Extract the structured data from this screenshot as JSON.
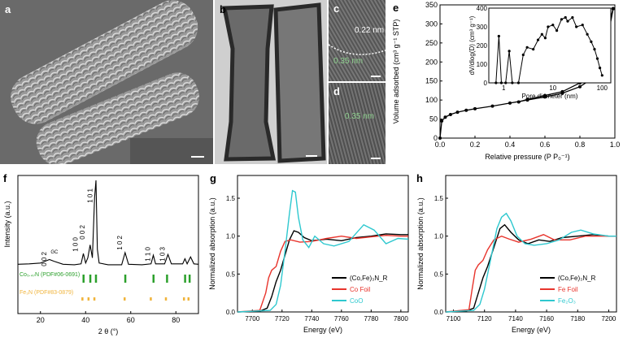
{
  "labels": {
    "a": "a",
    "b": "b",
    "c": "c",
    "d": "d",
    "e": "e",
    "f": "f",
    "g": "g",
    "h": "h"
  },
  "panel_c": {
    "spacing1": "0.22 nm",
    "spacing2": "0.35 nm"
  },
  "panel_d": {
    "spacing": "0.35 nm"
  },
  "colors": {
    "black": "#000000",
    "red": "#e8342c",
    "cyan": "#2ec8cf",
    "green": "#2ca02c",
    "orange": "#f0b43c"
  },
  "chart_data": [
    {
      "id": "e",
      "type": "line",
      "xlabel": "Relative pressure (P P₀⁻¹)",
      "ylabel": "Volume adsorbed (cm³ g⁻¹ STP)",
      "xlim": [
        0,
        1.0
      ],
      "ylim": [
        0,
        350
      ],
      "xticks": [
        "0.0",
        "0.2",
        "0.4",
        "0.6",
        "0.8",
        "1.0"
      ],
      "yticks": [
        "0",
        "50",
        "100",
        "150",
        "200",
        "250",
        "300",
        "350"
      ],
      "series": [
        {
          "values": [
            [
              0.0,
              0
            ],
            [
              0.01,
              45
            ],
            [
              0.03,
              55
            ],
            [
              0.06,
              62
            ],
            [
              0.1,
              68
            ],
            [
              0.15,
              73
            ],
            [
              0.2,
              77
            ],
            [
              0.3,
              84
            ],
            [
              0.4,
              92
            ],
            [
              0.5,
              100
            ],
            [
              0.6,
              108
            ],
            [
              0.7,
              118
            ],
            [
              0.8,
              135
            ],
            [
              0.85,
              150
            ],
            [
              0.9,
              185
            ],
            [
              0.94,
              230
            ],
            [
              0.97,
              290
            ],
            [
              0.99,
              340
            ]
          ]
        },
        {
          "values": [
            [
              0.99,
              340
            ],
            [
              0.97,
              305
            ],
            [
              0.94,
              255
            ],
            [
              0.9,
              205
            ],
            [
              0.85,
              165
            ],
            [
              0.8,
              145
            ],
            [
              0.7,
              122
            ],
            [
              0.6,
              112
            ],
            [
              0.5,
              102
            ],
            [
              0.45,
              95
            ]
          ]
        }
      ],
      "inset": {
        "xlabel": "Pore diameter (nm)",
        "ylabel": "dV/dlog(D) (cm³ g⁻¹)",
        "xscale": "log",
        "xlim": [
          0.5,
          150
        ],
        "ylim": [
          0,
          400
        ],
        "xticks": [
          "1",
          "10",
          "100"
        ],
        "yticks": [
          "0",
          "100",
          "200",
          "300",
          "400"
        ],
        "values": [
          [
            0.7,
            0
          ],
          [
            0.8,
            250
          ],
          [
            0.9,
            0
          ],
          [
            1.1,
            0
          ],
          [
            1.3,
            170
          ],
          [
            1.5,
            0
          ],
          [
            2,
            0
          ],
          [
            2.5,
            150
          ],
          [
            3,
            190
          ],
          [
            4,
            180
          ],
          [
            5,
            230
          ],
          [
            6,
            260
          ],
          [
            7,
            240
          ],
          [
            8,
            300
          ],
          [
            10,
            310
          ],
          [
            12,
            280
          ],
          [
            15,
            340
          ],
          [
            18,
            350
          ],
          [
            20,
            330
          ],
          [
            25,
            350
          ],
          [
            30,
            300
          ],
          [
            40,
            310
          ],
          [
            50,
            260
          ],
          [
            60,
            220
          ],
          [
            70,
            180
          ],
          [
            80,
            130
          ],
          [
            90,
            80
          ],
          [
            100,
            40
          ]
        ]
      }
    },
    {
      "id": "f",
      "type": "line",
      "xlabel": "2 θ (°)",
      "ylabel": "Intensity (a.u.)",
      "xlim": [
        10,
        90
      ],
      "xticks": [
        "20",
        "40",
        "60",
        "80"
      ],
      "peak_labels": [
        "0 0 2",
        "1 0 0",
        "0 0 2",
        "1 0 1",
        "1 0 2",
        "1 1 0",
        "1 0 3"
      ],
      "peak_label_sub": "GC",
      "refs": [
        {
          "name": "Co₅.₄₇N (PDF#06-0691)",
          "color": "#2ca02c",
          "peaks": [
            39,
            42,
            44.5,
            57.5,
            70,
            76,
            84,
            86
          ]
        },
        {
          "name": "Fe₃N (PDF#83-0879)",
          "color": "#f0b43c",
          "peaks": [
            38.5,
            41.2,
            43.8,
            57.2,
            68.8,
            75.5,
            83.5,
            85.5
          ]
        }
      ],
      "values": [
        [
          10,
          45
        ],
        [
          15,
          46
        ],
        [
          20,
          48
        ],
        [
          22,
          52
        ],
        [
          24,
          56
        ],
        [
          26,
          52
        ],
        [
          30,
          45
        ],
        [
          35,
          44
        ],
        [
          38,
          46
        ],
        [
          39,
          70
        ],
        [
          40,
          48
        ],
        [
          41,
          60
        ],
        [
          42,
          90
        ],
        [
          43,
          60
        ],
        [
          44,
          200
        ],
        [
          44.6,
          240
        ],
        [
          45.2,
          80
        ],
        [
          46,
          48
        ],
        [
          50,
          44
        ],
        [
          56,
          44
        ],
        [
          57.5,
          72
        ],
        [
          59,
          45
        ],
        [
          65,
          44
        ],
        [
          69,
          46
        ],
        [
          70,
          66
        ],
        [
          71,
          46
        ],
        [
          75,
          46
        ],
        [
          76.5,
          68
        ],
        [
          78,
          46
        ],
        [
          83,
          46
        ],
        [
          84,
          58
        ],
        [
          85,
          46
        ],
        [
          86.5,
          62
        ],
        [
          88,
          46
        ],
        [
          90,
          45
        ]
      ]
    },
    {
      "id": "g",
      "type": "line",
      "xlabel": "Energy (eV)",
      "ylabel": "Normalized absorption (a.u.)",
      "xlim": [
        7690,
        7805
      ],
      "ylim": [
        0,
        1.8
      ],
      "xticks": [
        "7700",
        "7720",
        "7740",
        "7760",
        "7780",
        "7800"
      ],
      "yticks": [
        "0.0",
        "0.5",
        "1.0",
        "1.5"
      ],
      "series": [
        {
          "name": "(Co,Fe)₃N_R",
          "color": "#000000",
          "values": [
            [
              7690,
              0
            ],
            [
              7705,
              0.01
            ],
            [
              7710,
              0.05
            ],
            [
              7713,
              0.2
            ],
            [
              7716,
              0.4
            ],
            [
              7719,
              0.55
            ],
            [
              7722,
              0.75
            ],
            [
              7725,
              0.95
            ],
            [
              7728,
              1.07
            ],
            [
              7731,
              1.05
            ],
            [
              7735,
              0.98
            ],
            [
              7740,
              0.94
            ],
            [
              7750,
              0.96
            ],
            [
              7760,
              0.94
            ],
            [
              7770,
              0.98
            ],
            [
              7780,
              1.0
            ],
            [
              7790,
              1.03
            ],
            [
              7800,
              1.02
            ],
            [
              7805,
              1.02
            ]
          ]
        },
        {
          "name": "Co Foil",
          "color": "#e8342c",
          "values": [
            [
              7690,
              0
            ],
            [
              7705,
              0.02
            ],
            [
              7709,
              0.25
            ],
            [
              7711,
              0.45
            ],
            [
              7713,
              0.55
            ],
            [
              7716,
              0.6
            ],
            [
              7719,
              0.8
            ],
            [
              7722,
              0.93
            ],
            [
              7726,
              0.95
            ],
            [
              7732,
              0.92
            ],
            [
              7740,
              0.93
            ],
            [
              7750,
              0.97
            ],
            [
              7760,
              1.0
            ],
            [
              7770,
              0.97
            ],
            [
              7780,
              0.99
            ],
            [
              7790,
              1.01
            ],
            [
              7800,
              1.0
            ],
            [
              7805,
              1.0
            ]
          ]
        },
        {
          "name": "CoO",
          "color": "#2ec8cf",
          "values": [
            [
              7690,
              0
            ],
            [
              7712,
              0.02
            ],
            [
              7716,
              0.1
            ],
            [
              7719,
              0.35
            ],
            [
              7722,
              0.8
            ],
            [
              7725,
              1.3
            ],
            [
              7727,
              1.6
            ],
            [
              7729,
              1.58
            ],
            [
              7731,
              1.25
            ],
            [
              7734,
              0.95
            ],
            [
              7738,
              0.85
            ],
            [
              7742,
              1.0
            ],
            [
              7748,
              0.9
            ],
            [
              7755,
              0.87
            ],
            [
              7765,
              0.93
            ],
            [
              7775,
              1.15
            ],
            [
              7782,
              1.08
            ],
            [
              7790,
              0.9
            ],
            [
              7798,
              0.97
            ],
            [
              7805,
              0.96
            ]
          ]
        }
      ]
    },
    {
      "id": "h",
      "type": "line",
      "xlabel": "Energy (eV)",
      "ylabel": "Normalized absorption (a.u.)",
      "xlim": [
        7095,
        7205
      ],
      "ylim": [
        0,
        1.8
      ],
      "xticks": [
        "7100",
        "7120",
        "7140",
        "7160",
        "7180",
        "7200"
      ],
      "yticks": [
        "0.0",
        "0.5",
        "1.0",
        "1.5"
      ],
      "series": [
        {
          "name": "(Co,Fe)₃N_R",
          "color": "#000000",
          "values": [
            [
              7095,
              0
            ],
            [
              7108,
              0.01
            ],
            [
              7113,
              0.05
            ],
            [
              7116,
              0.25
            ],
            [
              7119,
              0.45
            ],
            [
              7122,
              0.6
            ],
            [
              7126,
              0.85
            ],
            [
              7130,
              1.1
            ],
            [
              7133,
              1.15
            ],
            [
              7137,
              1.05
            ],
            [
              7142,
              0.95
            ],
            [
              7148,
              0.9
            ],
            [
              7155,
              0.95
            ],
            [
              7162,
              0.93
            ],
            [
              7170,
              0.98
            ],
            [
              7180,
              1.0
            ],
            [
              7190,
              1.02
            ],
            [
              7200,
              1.0
            ],
            [
              7205,
              1.0
            ]
          ]
        },
        {
          "name": "Fe Foil",
          "color": "#e8342c",
          "values": [
            [
              7095,
              0
            ],
            [
              7110,
              0.03
            ],
            [
              7112,
              0.3
            ],
            [
              7114,
              0.55
            ],
            [
              7116,
              0.62
            ],
            [
              7119,
              0.68
            ],
            [
              7122,
              0.82
            ],
            [
              7126,
              0.95
            ],
            [
              7131,
              1.0
            ],
            [
              7136,
              0.96
            ],
            [
              7142,
              0.92
            ],
            [
              7150,
              0.96
            ],
            [
              7158,
              1.02
            ],
            [
              7165,
              0.95
            ],
            [
              7175,
              0.95
            ],
            [
              7185,
              1.0
            ],
            [
              7195,
              1.0
            ],
            [
              7205,
              1.0
            ]
          ]
        },
        {
          "name": "Fe₂O₃",
          "color": "#2ec8cf",
          "values": [
            [
              7095,
              0
            ],
            [
              7113,
              0.02
            ],
            [
              7117,
              0.1
            ],
            [
              7120,
              0.3
            ],
            [
              7124,
              0.7
            ],
            [
              7128,
              1.1
            ],
            [
              7131,
              1.25
            ],
            [
              7134,
              1.3
            ],
            [
              7137,
              1.2
            ],
            [
              7141,
              1.0
            ],
            [
              7146,
              0.9
            ],
            [
              7152,
              0.88
            ],
            [
              7160,
              0.9
            ],
            [
              7168,
              0.95
            ],
            [
              7176,
              1.05
            ],
            [
              7182,
              1.08
            ],
            [
              7190,
              1.03
            ],
            [
              7200,
              1.0
            ],
            [
              7205,
              1.0
            ]
          ]
        }
      ]
    }
  ]
}
